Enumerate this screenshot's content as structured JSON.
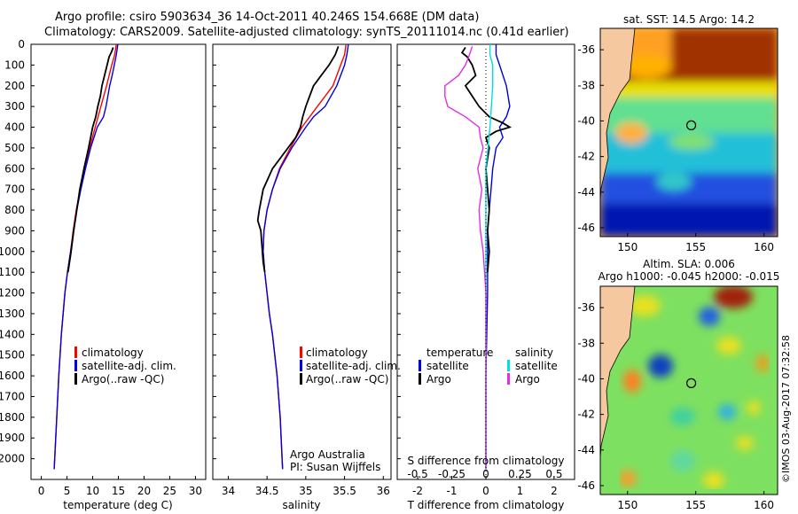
{
  "header": {
    "line1": "Argo profile: csiro 5903634_36 14-Oct-2011 40.246S 154.668E (DM data)",
    "line2": "Climatology: CARS2009. Satellite-adjusted climatology: synTS_20111014.nc (0.41d earlier)"
  },
  "footer": {
    "argo_australia": "Argo Australia",
    "pi": "PI: Susan Wijffels",
    "imos": "©IMOS 03-Aug-2017 07:32:58"
  },
  "colors": {
    "climatology": "#ff0000",
    "satellite": "#0000dd",
    "argo": "#000000",
    "satellite_sal": "#00e0e0",
    "argo_sal": "#e030e0",
    "land": "#f5c8a0"
  },
  "chart_data": [
    {
      "type": "line",
      "title": "",
      "xlabel": "temperature (deg C)",
      "ylabel": "",
      "xlim": [
        -2,
        32
      ],
      "ylim": [
        2100,
        0
      ],
      "xticks": [
        0,
        5,
        10,
        15,
        20,
        25,
        30
      ],
      "yticks": [
        0,
        100,
        200,
        300,
        400,
        500,
        600,
        700,
        800,
        900,
        1000,
        1100,
        1200,
        1300,
        1400,
        1500,
        1600,
        1700,
        1800,
        1900,
        2000
      ],
      "legend": [
        "climatology",
        "satellite-adj. clim.",
        "Argo(..raw -QC)"
      ],
      "legend_position": "lower-right",
      "series": [
        {
          "name": "climatology",
          "color_key": "climatology",
          "depth": [
            0,
            50,
            100,
            150,
            200,
            300,
            400,
            500,
            600,
            700,
            800,
            900,
            1000,
            1100,
            1200,
            1400,
            1600,
            1800,
            2000,
            2050
          ],
          "values": [
            14.6,
            14.3,
            13.7,
            13.2,
            12.7,
            11.6,
            10.5,
            9.4,
            8.4,
            7.6,
            6.8,
            6.2,
            5.7,
            5.1,
            4.6,
            3.9,
            3.4,
            3.0,
            2.6,
            2.5
          ]
        },
        {
          "name": "satellite-adj. clim.",
          "color_key": "satellite",
          "depth": [
            0,
            50,
            100,
            150,
            200,
            300,
            350,
            400,
            500,
            600,
            700,
            800,
            900,
            1000,
            1100,
            1200,
            1400,
            1600,
            1800,
            2000,
            2050
          ],
          "values": [
            14.9,
            14.6,
            14.2,
            13.8,
            13.3,
            12.6,
            12.1,
            10.9,
            9.6,
            8.6,
            7.7,
            6.9,
            6.3,
            5.7,
            5.1,
            4.6,
            3.9,
            3.4,
            3.0,
            2.6,
            2.5
          ]
        },
        {
          "name": "Argo(..raw -QC)",
          "color_key": "argo",
          "depth": [
            15,
            40,
            60,
            100,
            150,
            200,
            250,
            300,
            350,
            400,
            450,
            500,
            600,
            700,
            800,
            900,
            1000,
            1100
          ],
          "values": [
            14.0,
            13.6,
            13.2,
            12.8,
            12.3,
            11.8,
            11.5,
            11.0,
            10.6,
            10.0,
            9.6,
            9.2,
            8.3,
            7.5,
            6.9,
            6.3,
            5.8,
            5.2
          ]
        }
      ]
    },
    {
      "type": "line",
      "title": "",
      "xlabel": "salinity",
      "ylabel": "",
      "xlim": [
        33.8,
        36.1
      ],
      "ylim": [
        2100,
        0
      ],
      "xticks": [
        34,
        34.5,
        35,
        35.5,
        36
      ],
      "legend": [
        "climatology",
        "satellite-adj. clim.",
        "Argo(..raw -QC)"
      ],
      "legend_position": "lower-right",
      "series": [
        {
          "name": "climatology",
          "color_key": "climatology",
          "depth": [
            0,
            50,
            100,
            200,
            300,
            400,
            500,
            600,
            700,
            800,
            900,
            1000,
            1100,
            1200,
            1300,
            1400,
            1500,
            1600,
            1800,
            2050
          ],
          "values": [
            35.52,
            35.5,
            35.45,
            35.35,
            35.15,
            34.95,
            34.8,
            34.66,
            34.57,
            34.5,
            34.46,
            34.45,
            34.47,
            34.5,
            34.53,
            34.57,
            34.6,
            34.63,
            34.67,
            34.7
          ]
        },
        {
          "name": "satellite-adj. clim.",
          "color_key": "satellite",
          "depth": [
            0,
            50,
            100,
            200,
            300,
            350,
            400,
            500,
            600,
            700,
            800,
            900,
            1000,
            1100,
            1200,
            1300,
            1400,
            1500,
            1600,
            1800,
            2050
          ],
          "values": [
            35.55,
            35.53,
            35.5,
            35.4,
            35.25,
            35.1,
            35.0,
            34.82,
            34.67,
            34.57,
            34.5,
            34.46,
            34.45,
            34.47,
            34.5,
            34.53,
            34.57,
            34.6,
            34.63,
            34.67,
            34.7
          ]
        },
        {
          "name": "Argo(..raw -QC)",
          "color_key": "argo",
          "depth": [
            10,
            50,
            100,
            150,
            200,
            250,
            300,
            350,
            400,
            450,
            500,
            600,
            700,
            800,
            850,
            900,
            1000,
            1050,
            1100
          ],
          "values": [
            35.42,
            35.38,
            35.3,
            35.2,
            35.1,
            35.05,
            35.0,
            34.96,
            34.93,
            34.87,
            34.77,
            34.57,
            34.45,
            34.4,
            34.38,
            34.42,
            34.44,
            34.45,
            34.47
          ]
        }
      ]
    },
    {
      "type": "line",
      "title": "",
      "xlabel": "T difference from climatology",
      "xlabel_top": "S difference from climatology",
      "ylabel": "",
      "xlim": [
        -2.6,
        2.6
      ],
      "ylim": [
        2100,
        0
      ],
      "xticks": [
        -2,
        -1,
        0,
        1,
        2
      ],
      "xticks_s": [
        -0.5,
        -0.25,
        0,
        0.25,
        0.5
      ],
      "legend_left_title": "temperature",
      "legend_right_title": "salinity",
      "legend_left": [
        "satellite",
        "Argo"
      ],
      "legend_right": [
        "satellite",
        "Argo"
      ],
      "legend_position": "lower-center",
      "series": [
        {
          "name": "T satellite",
          "color_key": "satellite",
          "depth": [
            0,
            50,
            100,
            200,
            300,
            350,
            400,
            450,
            500,
            600,
            700,
            800,
            900,
            1000,
            1200,
            1600,
            2050
          ],
          "values": [
            0.3,
            0.3,
            0.4,
            0.6,
            0.7,
            0.6,
            0.4,
            0.5,
            0.3,
            0.2,
            0.15,
            0.1,
            0.05,
            0.05,
            0.05,
            0.0,
            0.0
          ]
        },
        {
          "name": "T Argo",
          "color_key": "argo",
          "depth": [
            15,
            40,
            60,
            100,
            150,
            200,
            250,
            300,
            350,
            380,
            400,
            420,
            450,
            500,
            600,
            700,
            800,
            900,
            1000,
            1100
          ],
          "values": [
            -0.6,
            -0.7,
            -0.55,
            -0.4,
            -0.3,
            -0.6,
            -0.4,
            -0.2,
            0.1,
            0.5,
            0.7,
            0.3,
            0.0,
            0.1,
            0.0,
            0.05,
            0.1,
            0.05,
            0.1,
            0.05
          ]
        },
        {
          "name": "S satellite",
          "color_key": "satellite_sal",
          "depth": [
            0,
            50,
            100,
            150,
            200,
            300,
            400,
            600,
            1000,
            2050
          ],
          "values": [
            0.03,
            0.03,
            0.05,
            0.05,
            0.05,
            0.04,
            0.03,
            0.0,
            0.0,
            0.0
          ]
        },
        {
          "name": "S Argo",
          "color_key": "argo_sal",
          "depth": [
            10,
            50,
            100,
            150,
            200,
            250,
            300,
            350,
            400,
            450,
            500,
            600,
            700,
            800,
            900,
            1000,
            1100,
            1200,
            2050
          ],
          "values": [
            -0.1,
            -0.12,
            -0.15,
            -0.2,
            -0.3,
            -0.3,
            -0.28,
            -0.15,
            -0.05,
            -0.04,
            -0.02,
            -0.06,
            -0.03,
            -0.05,
            -0.04,
            -0.02,
            -0.01,
            0.0,
            0.0
          ]
        }
      ]
    },
    {
      "type": "heatmap",
      "title": "sat. SST: 14.5 Argo: 14.2",
      "xticks": [
        150,
        155,
        160
      ],
      "yticks": [
        -36,
        -38,
        -40,
        -42,
        -44,
        -46
      ],
      "xlim": [
        148,
        161
      ],
      "ylim": [
        -46.5,
        -34.8
      ],
      "marker": {
        "lon": 154.668,
        "lat": -40.246
      }
    },
    {
      "type": "heatmap",
      "title": "Altim. SLA: 0.006",
      "subtitle": "Argo h1000: -0.045 h2000: -0.015",
      "xticks": [
        150,
        155,
        160
      ],
      "yticks": [
        -36,
        -38,
        -40,
        -42,
        -44,
        -46
      ],
      "xlim": [
        148,
        161
      ],
      "ylim": [
        -46.5,
        -34.8
      ],
      "marker": {
        "lon": 154.668,
        "lat": -40.246
      }
    }
  ]
}
